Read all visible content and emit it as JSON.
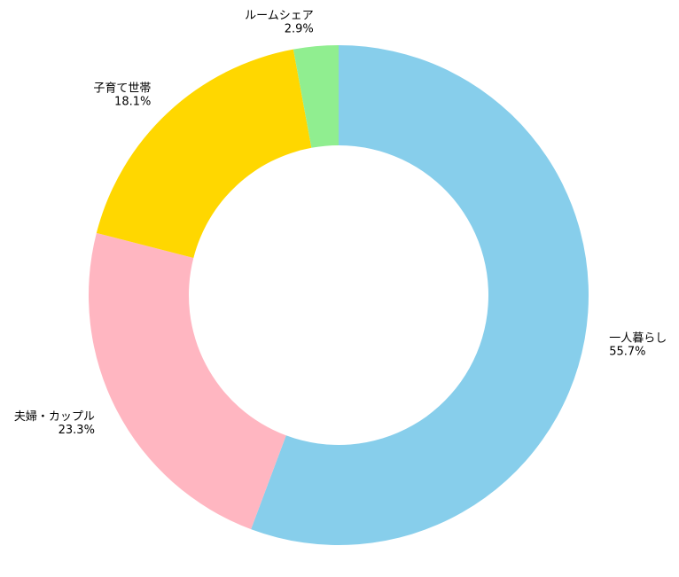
{
  "chart_data": {
    "type": "donut",
    "categories": [
      "一人暮らし",
      "夫婦・カップル",
      "子育て世帯",
      "ルームシェア"
    ],
    "values": [
      55.7,
      23.3,
      18.1,
      2.9
    ],
    "value_labels": [
      "55.7%",
      "23.3%",
      "18.1%",
      "2.9%"
    ],
    "colors": [
      "#87ceeb",
      "#ffb6c1",
      "#ffd700",
      "#90ee90"
    ]
  }
}
